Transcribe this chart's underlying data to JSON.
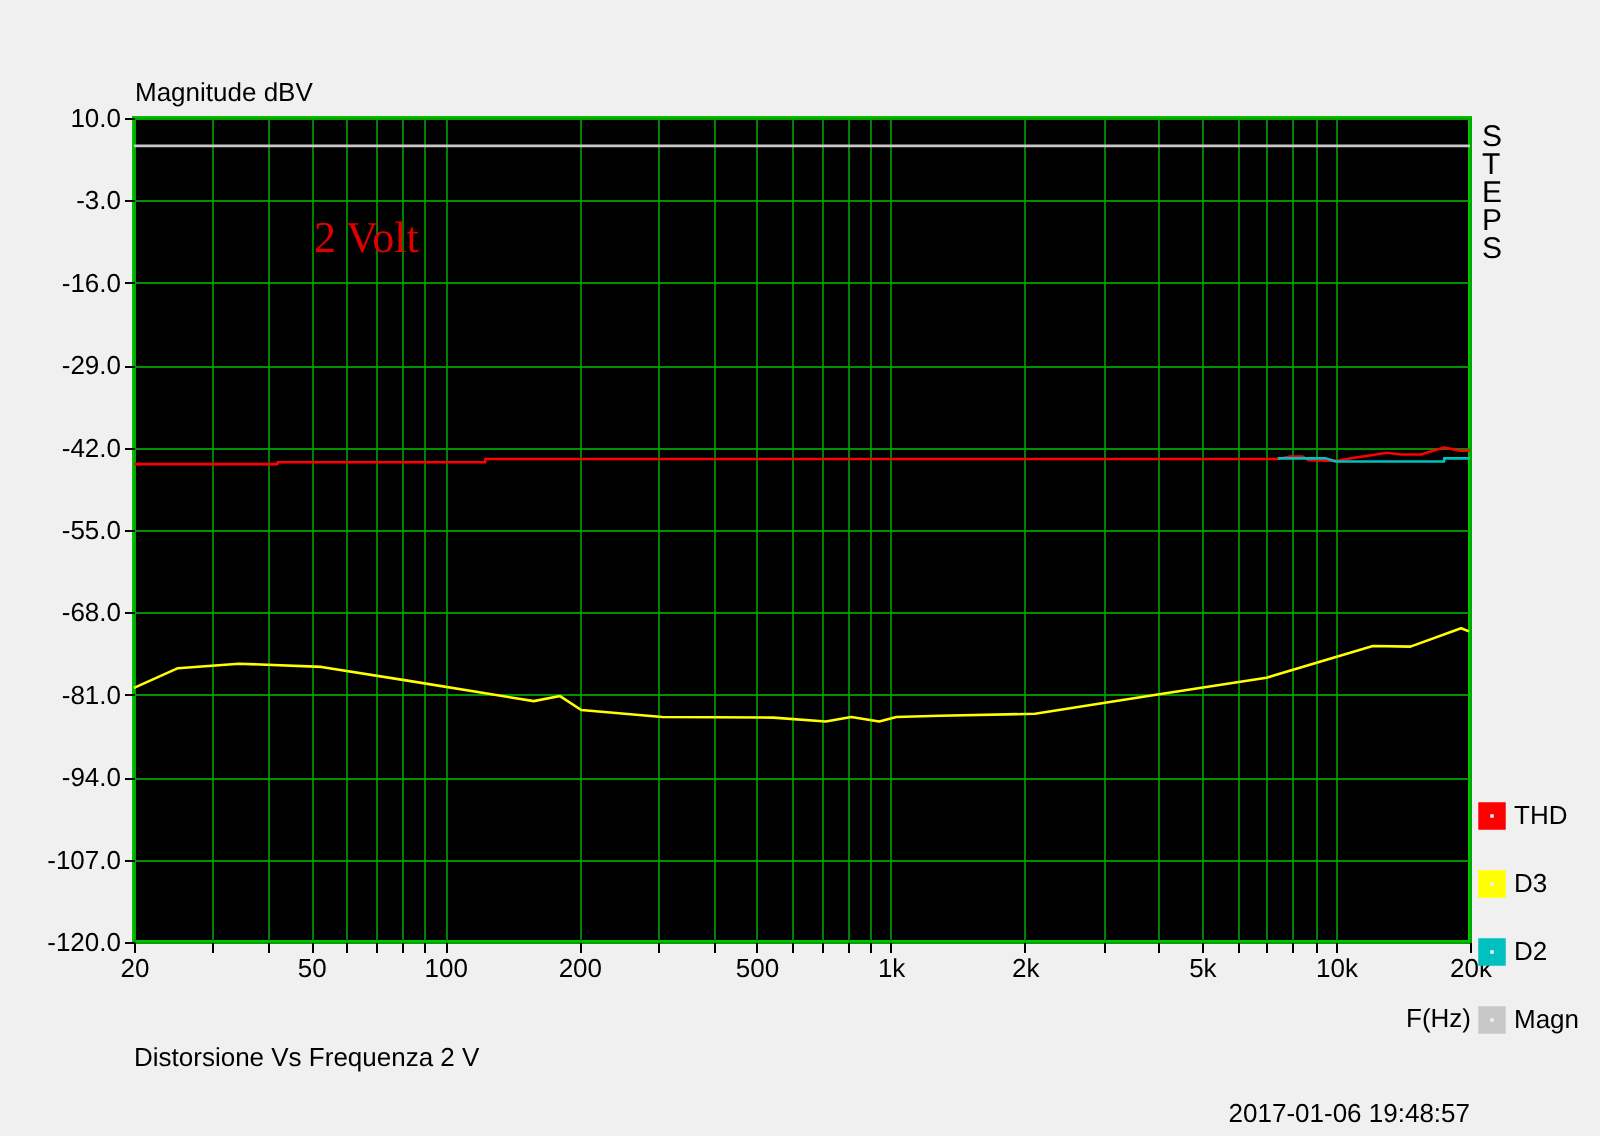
{
  "chart_data": {
    "type": "line",
    "ylabel": "Magnitude dBV",
    "xlabel": "F(Hz)",
    "annotations": [
      "2 Volt",
      "STEPS",
      "Distorsione Vs Frequenza 2 V",
      "2017-01-06 19:48:57"
    ],
    "log": "x",
    "grid": true,
    "legend": "bottom right",
    "marker": "none",
    "line_style": "solid",
    "xlim": [
      20,
      20000
    ],
    "xticks": [
      20,
      {
        "value": 30,
        "label": null
      },
      {
        "value": 40,
        "label": null
      },
      50,
      {
        "value": 60,
        "label": null
      },
      {
        "value": 70,
        "label": null
      },
      {
        "value": 80,
        "label": null
      },
      {
        "value": 90,
        "label": null
      },
      100,
      200,
      {
        "value": 300,
        "label": null
      },
      {
        "value": 400,
        "label": null
      },
      500,
      {
        "value": 600,
        "label": null
      },
      {
        "value": 700,
        "label": null
      },
      {
        "value": 800,
        "label": null
      },
      {
        "value": 900,
        "label": null
      },
      {
        "value": 1000,
        "label": "1k"
      },
      {
        "value": 2000,
        "label": "2k"
      },
      {
        "value": 3000,
        "label": null
      },
      {
        "value": 4000,
        "label": null
      },
      {
        "value": 5000,
        "label": "5k"
      },
      {
        "value": 6000,
        "label": null
      },
      {
        "value": 7000,
        "label": null
      },
      {
        "value": 8000,
        "label": null
      },
      {
        "value": 9000,
        "label": null
      },
      {
        "value": 10000,
        "label": "10k"
      },
      {
        "value": 20000,
        "label": "20k"
      }
    ],
    "ylim": [
      -120,
      10
    ],
    "yticks": [
      {
        "value": 10,
        "label": "10.0"
      },
      {
        "value": -3,
        "label": "-3.0"
      },
      {
        "value": -16,
        "label": "-16.0"
      },
      {
        "value": -29,
        "label": "-29.0"
      },
      {
        "value": -42,
        "label": "-42.0"
      },
      {
        "value": -55,
        "label": "-55.0"
      },
      {
        "value": -68,
        "label": "-68.0"
      },
      {
        "value": -81,
        "label": "-81.0"
      },
      {
        "value": -94,
        "label": "-94.0"
      },
      {
        "value": -107,
        "label": "-107.0"
      },
      {
        "value": -120,
        "label": "-120.0"
      }
    ],
    "series": [
      {
        "name": "THD",
        "color": "#ff0000",
        "x": [
          20,
          42,
          42,
          123,
          123,
          7400,
          7900,
          8400,
          8700,
          10000,
          11000,
          12000,
          13000,
          14000,
          15500,
          17500,
          19000,
          20000
        ],
        "values": [
          -44.6,
          -44.6,
          -44.3,
          -44.3,
          -43.8,
          -43.8,
          -43.4,
          -43.4,
          -44.0,
          -44.1,
          -43.6,
          -43.2,
          -42.8,
          -43.1,
          -43.1,
          -42.0,
          -42.5,
          -42.5
        ]
      },
      {
        "name": "D3",
        "color": "#ffff00",
        "x": [
          20,
          25.1,
          34.4,
          52.7,
          82.9,
          158,
          181,
          202,
          307,
          545,
          715,
          816,
          943,
          1030,
          1290,
          2110,
          4010,
          6980,
          12100,
          14700,
          19100,
          19900
        ],
        "values": [
          -79.9,
          -76.8,
          -76.1,
          -76.6,
          -78.8,
          -82.0,
          -81.2,
          -83.4,
          -84.5,
          -84.6,
          -85.2,
          -84.5,
          -85.2,
          -84.5,
          -84.3,
          -84.0,
          -80.9,
          -78.3,
          -73.3,
          -73.4,
          -70.5,
          -71.0
        ]
      },
      {
        "name": "D2",
        "color": "#00c0c0",
        "x": [
          7400,
          9500,
          10000,
          17500,
          17500,
          20000
        ],
        "values": [
          -43.7,
          -43.7,
          -44.2,
          -44.2,
          -43.7,
          -43.7
        ]
      },
      {
        "name": "Magn",
        "color": "#c8c8c8",
        "x": [
          20,
          20000
        ],
        "values": [
          5.6,
          5.6
        ]
      }
    ]
  }
}
